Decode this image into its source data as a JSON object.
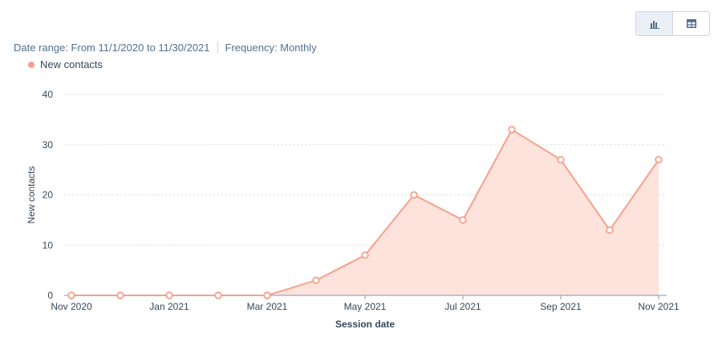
{
  "header": {
    "view_toggle": {
      "chart_icon": "bar-chart-icon",
      "table_icon": "table-icon",
      "active": "chart"
    }
  },
  "meta": {
    "date_range": "Date range: From 11/1/2020 to 11/30/2021",
    "frequency": "Frequency: Monthly"
  },
  "colors": {
    "series": "#f8a08c",
    "area_fill": "#fde3dc",
    "grid": "#dfe3eb",
    "axis_text": "#33475b",
    "accent_icon": "#516f90"
  },
  "chart_data": {
    "type": "area",
    "xlabel": "Session date",
    "ylabel": "New contacts",
    "ylim": [
      0,
      40
    ],
    "y_ticks": [
      0,
      10,
      20,
      30,
      40
    ],
    "x_tick_labels": [
      "Nov 2020",
      "Jan 2021",
      "Mar 2021",
      "May 2021",
      "Jul 2021",
      "Sep 2021",
      "Nov 2021"
    ],
    "x_tick_positions": [
      0,
      2,
      4,
      6,
      8,
      10,
      12
    ],
    "x": [
      "Nov 2020",
      "Dec 2020",
      "Jan 2021",
      "Feb 2021",
      "Mar 2021",
      "Apr 2021",
      "May 2021",
      "Jun 2021",
      "Jul 2021",
      "Aug 2021",
      "Sep 2021",
      "Oct 2021",
      "Nov 2021"
    ],
    "series": [
      {
        "name": "New contacts",
        "values": [
          0,
          0,
          0,
          0,
          0,
          3,
          8,
          20,
          15,
          33,
          27,
          13,
          27
        ]
      }
    ],
    "grid": true,
    "legend": "top-left"
  }
}
